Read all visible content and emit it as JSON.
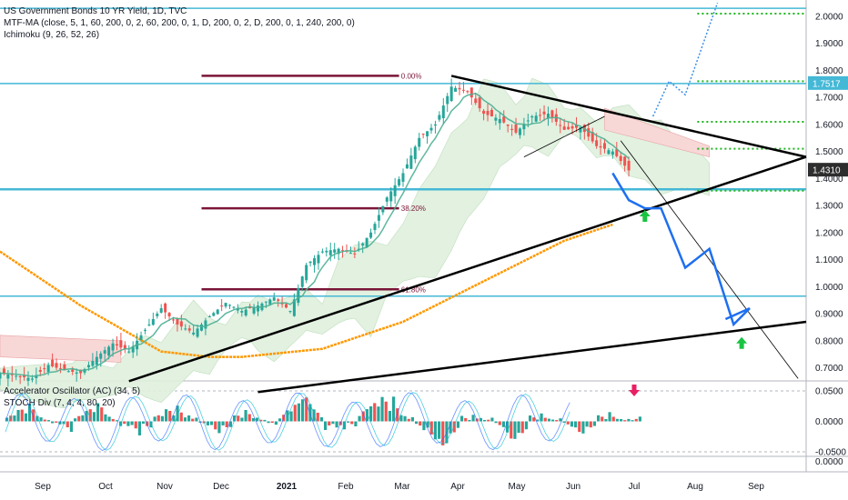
{
  "legend": {
    "main_title": "US Government Bonds 10 YR Yield, 1D, TVC",
    "mtf_ma": "MTF-MA (close, 5, 1, 60, 200, 0, 2, 60, 200, 0, 1, D, 200, 0, 2, D, 200, 0, 1, 240, 200, 0)",
    "ichimoku": "Ichimoku (9, 26, 52, 26)",
    "ac": "Accelerator Oscillator (AC) (34, 5)",
    "stoch": "STOCH Div (7, 4, 4, 80, 20)"
  },
  "colors": {
    "bull": "#26a69a",
    "bear": "#ef5350",
    "cyan_line": "#45b8d6",
    "fib": "#7b1538",
    "green_dots": "#1fb51f",
    "ma_orange": "#ff9800",
    "arrow_blue": "#1e6ff0",
    "trend": "#000000",
    "cloud_green": "#dff0dd",
    "cloud_red": "#f8d7d7",
    "arrow_green": "#19c442",
    "arrow_red": "#e91e63"
  },
  "chart_data": [
    {
      "type": "candlestick",
      "title": "US Government Bonds 10 YR Yield, 1D, TVC",
      "x_axis_labels": [
        "Sep",
        "Oct",
        "Nov",
        "Dec",
        "2021",
        "Feb",
        "Mar",
        "Apr",
        "May",
        "Jun",
        "Jul",
        "Aug",
        "Sep"
      ],
      "y_ticks": [
        "2.0000",
        "1.9000",
        "1.8000",
        "1.7000",
        "1.6000",
        "1.5000",
        "1.4000",
        "1.3000",
        "1.2000",
        "1.1000",
        "1.0000",
        "0.9000",
        "0.8000",
        "0.7000"
      ],
      "ylim": [
        0.65,
        2.05
      ],
      "last_price": "1.4310",
      "marked_level": "1.7517",
      "close_path": [
        [
          0,
          0.68
        ],
        [
          4,
          0.67
        ],
        [
          8,
          0.66
        ],
        [
          12,
          0.71
        ],
        [
          16,
          0.69
        ],
        [
          20,
          0.68
        ],
        [
          24,
          0.74
        ],
        [
          28,
          0.79
        ],
        [
          32,
          0.76
        ],
        [
          36,
          0.84
        ],
        [
          40,
          0.92
        ],
        [
          44,
          0.86
        ],
        [
          48,
          0.83
        ],
        [
          52,
          0.89
        ],
        [
          56,
          0.94
        ],
        [
          60,
          0.91
        ],
        [
          64,
          0.93
        ],
        [
          68,
          0.96
        ],
        [
          72,
          0.91
        ],
        [
          76,
          1.08
        ],
        [
          80,
          1.13
        ],
        [
          84,
          1.14
        ],
        [
          88,
          1.12
        ],
        [
          92,
          1.2
        ],
        [
          96,
          1.33
        ],
        [
          100,
          1.42
        ],
        [
          104,
          1.55
        ],
        [
          108,
          1.6
        ],
        [
          112,
          1.74
        ],
        [
          116,
          1.72
        ],
        [
          120,
          1.64
        ],
        [
          124,
          1.62
        ],
        [
          128,
          1.57
        ],
        [
          132,
          1.63
        ],
        [
          136,
          1.64
        ],
        [
          140,
          1.58
        ],
        [
          144,
          1.59
        ],
        [
          148,
          1.52
        ],
        [
          152,
          1.5
        ],
        [
          156,
          1.43
        ]
      ],
      "ichimoku_annotation": "cloud",
      "fib_levels": [
        {
          "label": "0.00%",
          "value": 1.78
        },
        {
          "label": "38.20%",
          "value": 1.29
        },
        {
          "label": "61.80%",
          "value": 0.99
        }
      ],
      "horizontal_levels": [
        2.03,
        1.7517,
        1.36,
        0.965
      ],
      "green_dotted_levels": [
        2.01,
        1.76,
        1.61,
        1.51,
        1.355
      ],
      "ma200_path": [
        [
          0,
          1.13
        ],
        [
          20,
          0.93
        ],
        [
          40,
          0.76
        ],
        [
          52,
          0.74
        ],
        [
          60,
          0.74
        ],
        [
          80,
          0.77
        ],
        [
          100,
          0.87
        ],
        [
          120,
          1.02
        ],
        [
          140,
          1.17
        ],
        [
          152,
          1.23
        ]
      ],
      "projection_path": [
        [
          152,
          1.42
        ],
        [
          156,
          1.32
        ],
        [
          160,
          1.29
        ],
        [
          164,
          1.29
        ],
        [
          170,
          1.07
        ],
        [
          176,
          1.14
        ],
        [
          182,
          0.86
        ],
        [
          186,
          0.92
        ],
        [
          180,
          0.88
        ]
      ],
      "upside_projection": [
        [
          162,
          1.63
        ],
        [
          166,
          1.76
        ],
        [
          170,
          1.71
        ],
        [
          178,
          2.05
        ]
      ],
      "signals": [
        {
          "type": "buy",
          "x": 160,
          "value": 1.26
        },
        {
          "type": "buy",
          "x": 184,
          "value": 0.79
        }
      ]
    },
    {
      "type": "bar",
      "title": "Accelerator Oscillator (AC) (34, 5)",
      "y_ticks": [
        "0.0500",
        "0.0000",
        "-0.0500"
      ],
      "ylim": [
        -0.06,
        0.06
      ],
      "values": [
        0.01,
        0.02,
        0.03,
        0.01,
        -0.01,
        -0.02,
        0.01,
        0.02,
        0.03,
        0.01,
        -0.02,
        -0.03,
        -0.01,
        0.01,
        0.02,
        0.03,
        0.02,
        -0.01,
        -0.02,
        -0.01,
        0.01,
        0.02,
        0.01,
        -0.01,
        0.02,
        0.03,
        0.04,
        0.02,
        -0.02,
        -0.03,
        -0.01,
        0.02,
        0.03,
        0.04,
        0.05,
        0.02,
        -0.02,
        -0.03,
        -0.04,
        -0.02,
        0.01,
        0.02,
        0.01,
        -0.01,
        -0.03,
        -0.02,
        0.01,
        0.02,
        0.01,
        -0.01,
        -0.02,
        -0.01,
        0.01,
        0.02,
        0.01,
        0.01
      ],
      "sell_signal": "arrow-down"
    },
    {
      "type": "line",
      "title": "STOCH Div (7, 4, 4, 80, 20)",
      "y_ticks": [
        "0.0000"
      ]
    }
  ]
}
